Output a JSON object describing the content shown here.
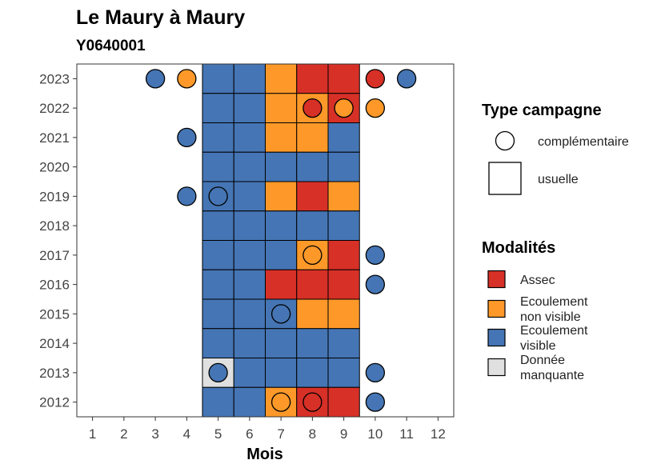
{
  "chart_data": {
    "type": "heatmap",
    "title": "Le Maury à Maury",
    "subtitle": "Y0640001",
    "xlabel": "Mois",
    "ylabel": "",
    "x_ticks": [
      1,
      2,
      3,
      4,
      5,
      6,
      7,
      8,
      9,
      10,
      11,
      12
    ],
    "y_ticks": [
      2012,
      2013,
      2014,
      2015,
      2016,
      2017,
      2018,
      2019,
      2020,
      2021,
      2022,
      2023
    ],
    "xlim": [
      0.5,
      12.5
    ],
    "ylim": [
      2011.5,
      2023.5
    ],
    "grid": false,
    "colors": {
      "Assec": "#d73027",
      "Ecoulement non visible": "#fe9929",
      "Ecoulement visible": "#4575b4",
      "Donnée manquante": "#e0e0e0"
    },
    "usuelle": [
      {
        "year": 2023,
        "months": {
          "5": "Ecoulement visible",
          "6": "Ecoulement visible",
          "7": "Ecoulement non visible",
          "8": "Assec",
          "9": "Assec"
        }
      },
      {
        "year": 2022,
        "months": {
          "5": "Ecoulement visible",
          "6": "Ecoulement visible",
          "7": "Ecoulement non visible",
          "8": "Ecoulement non visible",
          "9": "Assec"
        }
      },
      {
        "year": 2021,
        "months": {
          "5": "Ecoulement visible",
          "6": "Ecoulement visible",
          "7": "Ecoulement non visible",
          "8": "Ecoulement non visible",
          "9": "Ecoulement visible"
        }
      },
      {
        "year": 2020,
        "months": {
          "5": "Ecoulement visible",
          "6": "Ecoulement visible",
          "7": "Ecoulement visible",
          "8": "Ecoulement visible",
          "9": "Ecoulement visible"
        }
      },
      {
        "year": 2019,
        "months": {
          "5": "Ecoulement visible",
          "6": "Ecoulement visible",
          "7": "Ecoulement non visible",
          "8": "Assec",
          "9": "Ecoulement non visible"
        }
      },
      {
        "year": 2018,
        "months": {
          "5": "Ecoulement visible",
          "6": "Ecoulement visible",
          "7": "Ecoulement visible",
          "8": "Ecoulement visible",
          "9": "Ecoulement visible"
        }
      },
      {
        "year": 2017,
        "months": {
          "5": "Ecoulement visible",
          "6": "Ecoulement visible",
          "7": "Ecoulement visible",
          "8": "Ecoulement non visible",
          "9": "Assec"
        }
      },
      {
        "year": 2016,
        "months": {
          "5": "Ecoulement visible",
          "6": "Ecoulement visible",
          "7": "Assec",
          "8": "Assec",
          "9": "Assec"
        }
      },
      {
        "year": 2015,
        "months": {
          "5": "Ecoulement visible",
          "6": "Ecoulement visible",
          "7": "Ecoulement visible",
          "8": "Ecoulement non visible",
          "9": "Ecoulement non visible"
        }
      },
      {
        "year": 2014,
        "months": {
          "5": "Ecoulement visible",
          "6": "Ecoulement visible",
          "7": "Ecoulement visible",
          "8": "Ecoulement visible",
          "9": "Ecoulement visible"
        }
      },
      {
        "year": 2013,
        "months": {
          "5": "Donnée manquante",
          "6": "Ecoulement visible",
          "7": "Ecoulement visible",
          "8": "Ecoulement visible",
          "9": "Ecoulement visible"
        }
      },
      {
        "year": 2012,
        "months": {
          "5": "Ecoulement visible",
          "6": "Ecoulement visible",
          "7": "Ecoulement non visible",
          "8": "Assec",
          "9": "Assec"
        }
      }
    ],
    "complementaire": [
      {
        "year": 2023,
        "month": 3,
        "value": "Ecoulement visible"
      },
      {
        "year": 2023,
        "month": 4,
        "value": "Ecoulement non visible"
      },
      {
        "year": 2023,
        "month": 10,
        "value": "Assec"
      },
      {
        "year": 2023,
        "month": 11,
        "value": "Ecoulement visible"
      },
      {
        "year": 2022,
        "month": 8,
        "value": "Assec"
      },
      {
        "year": 2022,
        "month": 9,
        "value": "Ecoulement non visible"
      },
      {
        "year": 2022,
        "month": 10,
        "value": "Ecoulement non visible"
      },
      {
        "year": 2021,
        "month": 4,
        "value": "Ecoulement visible"
      },
      {
        "year": 2019,
        "month": 4,
        "value": "Ecoulement visible"
      },
      {
        "year": 2019,
        "month": 5,
        "value": "Ecoulement visible"
      },
      {
        "year": 2017,
        "month": 8,
        "value": "Ecoulement non visible"
      },
      {
        "year": 2017,
        "month": 10,
        "value": "Ecoulement visible"
      },
      {
        "year": 2016,
        "month": 10,
        "value": "Ecoulement visible"
      },
      {
        "year": 2015,
        "month": 7,
        "value": "Ecoulement visible"
      },
      {
        "year": 2013,
        "month": 5,
        "value": "Ecoulement visible"
      },
      {
        "year": 2013,
        "month": 10,
        "value": "Ecoulement visible"
      },
      {
        "year": 2012,
        "month": 7,
        "value": "Ecoulement non visible"
      },
      {
        "year": 2012,
        "month": 8,
        "value": "Assec"
      },
      {
        "year": 2012,
        "month": 10,
        "value": "Ecoulement visible"
      }
    ],
    "legend": {
      "placement": "right",
      "type_title": "Type campagne",
      "type_items": [
        {
          "shape": "circle",
          "label": "complémentaire"
        },
        {
          "shape": "square",
          "label": "usuelle"
        }
      ],
      "modalites_title": "Modalités",
      "modalites_items": [
        {
          "key": "Assec",
          "lines": [
            "Assec"
          ]
        },
        {
          "key": "Ecoulement non visible",
          "lines": [
            "Ecoulement",
            "non visible"
          ]
        },
        {
          "key": "Ecoulement visible",
          "lines": [
            "Ecoulement",
            "visible"
          ]
        },
        {
          "key": "Donnée manquante",
          "lines": [
            "Donnée",
            "manquante"
          ]
        }
      ]
    }
  }
}
